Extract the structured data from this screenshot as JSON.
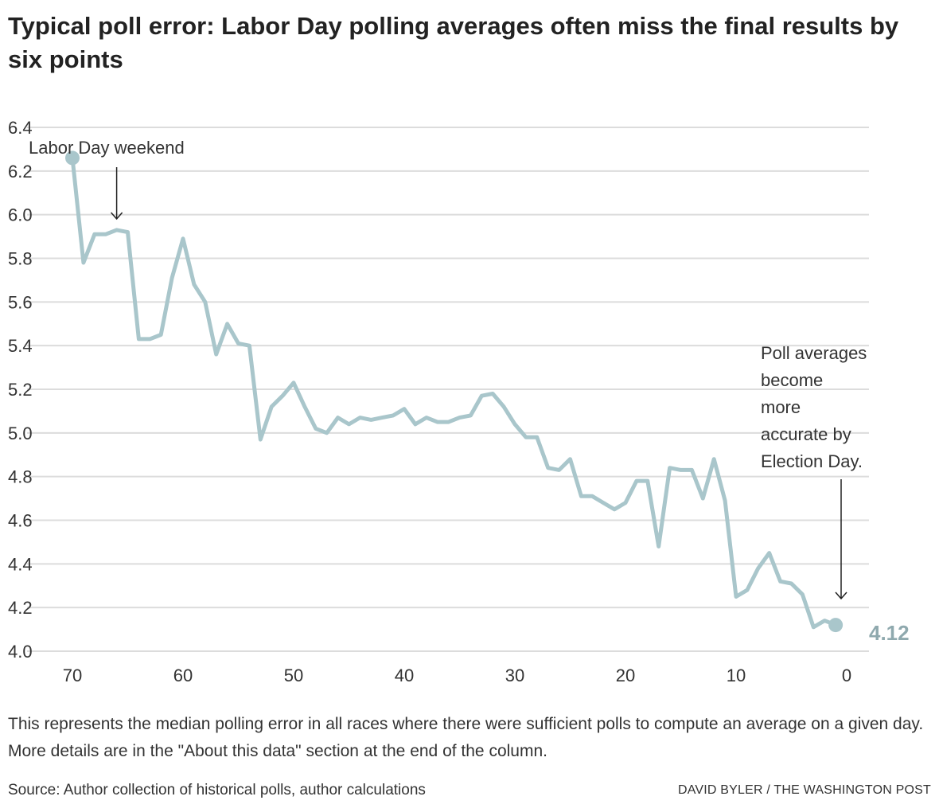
{
  "title": "Typical poll error: Labor Day polling averages often miss the final results by six points",
  "note": "This represents the median polling error in all races where there were sufficient polls to compute an average on a given day. More details are in the \"About this data\" section at the end of the column.",
  "source": "Source: Author collection of historical polls, author calculations",
  "credit": "DAVID BYLER / THE WASHINGTON POST",
  "chart_data": {
    "type": "line",
    "title": "Typical poll error: Labor Day polling averages often miss the final results by six points",
    "xlabel": "",
    "ylabel": "",
    "xlim": [
      70,
      0
    ],
    "ylim": [
      4.0,
      6.4
    ],
    "x_reversed": true,
    "grid": true,
    "x_ticks": [
      70,
      60,
      50,
      40,
      30,
      20,
      10,
      0
    ],
    "y_ticks": [
      4.0,
      4.2,
      4.4,
      4.6,
      4.8,
      5.0,
      5.2,
      5.4,
      5.6,
      5.8,
      6.0,
      6.2,
      6.4
    ],
    "color": "#a9c6cb",
    "end_label_color": "#8fa9ae",
    "series": [
      {
        "x": [
          70,
          69,
          68,
          67,
          66,
          65,
          64,
          63,
          62,
          61,
          60,
          59,
          58,
          57,
          56,
          55,
          54,
          53,
          52,
          51,
          50,
          49,
          48,
          47,
          46,
          45,
          44,
          43,
          42,
          41,
          40,
          39,
          38,
          37,
          36,
          35,
          34,
          33,
          32,
          31,
          30,
          29,
          28,
          27,
          26,
          25,
          24,
          23,
          22,
          21,
          20,
          19,
          18,
          17,
          16,
          15,
          14,
          13,
          12,
          11,
          10,
          9,
          8,
          7,
          6,
          5,
          4,
          3,
          2,
          1
        ],
        "values": [
          6.26,
          5.78,
          5.91,
          5.91,
          5.93,
          5.92,
          5.43,
          5.43,
          5.45,
          5.71,
          5.89,
          5.68,
          5.6,
          5.36,
          5.5,
          5.41,
          5.4,
          4.97,
          5.12,
          5.17,
          5.23,
          5.12,
          5.02,
          5.0,
          5.07,
          5.04,
          5.07,
          5.06,
          5.07,
          5.08,
          5.11,
          5.04,
          5.07,
          5.05,
          5.05,
          5.07,
          5.08,
          5.17,
          5.18,
          5.12,
          5.04,
          4.98,
          4.98,
          4.84,
          4.83,
          4.88,
          4.71,
          4.71,
          4.68,
          4.65,
          4.68,
          4.78,
          4.78,
          4.48,
          4.84,
          4.83,
          4.83,
          4.7,
          4.88,
          4.69,
          4.25,
          4.28,
          4.38,
          4.45,
          4.32,
          4.31,
          4.26,
          4.11,
          4.14,
          4.12
        ]
      }
    ],
    "end_label": "4.12",
    "annotations": [
      {
        "text": "Labor Day weekend",
        "x": 66
      },
      {
        "lines": [
          "Poll averages",
          "become",
          "more",
          "accurate by",
          "Election Day."
        ],
        "x": 0
      }
    ]
  }
}
